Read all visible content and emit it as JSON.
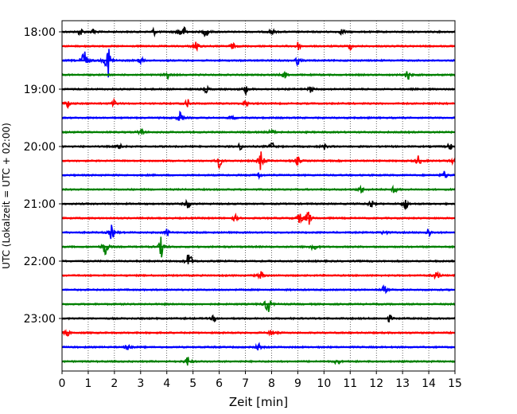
{
  "chart_data": {
    "type": "line",
    "title": "",
    "xlabel": "Zeit  [min]",
    "ylabel": "UTC (Lokalzeit = UTC + 02:00)",
    "xlim": [
      0,
      15
    ],
    "x_ticks": [
      "0",
      "1",
      "2",
      "3",
      "4",
      "5",
      "6",
      "7",
      "8",
      "9",
      "10",
      "11",
      "12",
      "13",
      "14",
      "15"
    ],
    "y_ticks": [
      "18:00",
      "19:00",
      "20:00",
      "21:00",
      "22:00",
      "23:00"
    ],
    "grid": "vertical dotted",
    "trace_interval_min": 15,
    "colors": [
      "#000000",
      "#ff0000",
      "#0000ff",
      "#008000"
    ],
    "traces": [
      {
        "start": "18:00",
        "color": "#000000",
        "events": [
          [
            0.7,
            4
          ],
          [
            1.2,
            3
          ],
          [
            3.5,
            3
          ],
          [
            4.5,
            5
          ],
          [
            4.7,
            4
          ],
          [
            5.5,
            5
          ],
          [
            8,
            3
          ],
          [
            10.7,
            3
          ]
        ]
      },
      {
        "start": "18:15",
        "color": "#ff0000",
        "events": [
          [
            5.1,
            6
          ],
          [
            6.5,
            3
          ],
          [
            9,
            4
          ],
          [
            11,
            3
          ]
        ]
      },
      {
        "start": "18:30",
        "color": "#0000ff",
        "events": [
          [
            0.85,
            14
          ],
          [
            1.75,
            18
          ],
          [
            3,
            3
          ],
          [
            9,
            4
          ]
        ]
      },
      {
        "start": "18:45",
        "color": "#008000",
        "events": [
          [
            4,
            4
          ],
          [
            8.5,
            3
          ],
          [
            13.2,
            5
          ]
        ]
      },
      {
        "start": "19:00",
        "color": "#000000",
        "events": [
          [
            5.5,
            3
          ],
          [
            7,
            4
          ],
          [
            9.5,
            3
          ]
        ]
      },
      {
        "start": "19:15",
        "color": "#ff0000",
        "events": [
          [
            0.2,
            4
          ],
          [
            2,
            3
          ],
          [
            4.8,
            4
          ],
          [
            7,
            3
          ]
        ]
      },
      {
        "start": "19:30",
        "color": "#0000ff",
        "events": [
          [
            4.5,
            5
          ],
          [
            6.5,
            3
          ]
        ]
      },
      {
        "start": "19:45",
        "color": "#008000",
        "events": [
          [
            3,
            4
          ],
          [
            8,
            3
          ]
        ]
      },
      {
        "start": "20:00",
        "color": "#000000",
        "events": [
          [
            2.2,
            3
          ],
          [
            6.8,
            3
          ],
          [
            8,
            4
          ],
          [
            10,
            3
          ],
          [
            14.8,
            3
          ]
        ]
      },
      {
        "start": "20:15",
        "color": "#ff0000",
        "events": [
          [
            6,
            6
          ],
          [
            7.6,
            10
          ],
          [
            9,
            4
          ],
          [
            13.6,
            5
          ],
          [
            14.9,
            3
          ]
        ]
      },
      {
        "start": "20:30",
        "color": "#0000ff",
        "events": [
          [
            7.5,
            3
          ],
          [
            14.6,
            4
          ]
        ]
      },
      {
        "start": "20:45",
        "color": "#008000",
        "events": [
          [
            11.4,
            3
          ],
          [
            12.7,
            4
          ]
        ]
      },
      {
        "start": "21:00",
        "color": "#000000",
        "events": [
          [
            4.8,
            4
          ],
          [
            11.8,
            4
          ],
          [
            13.1,
            6
          ]
        ]
      },
      {
        "start": "21:15",
        "color": "#ff0000",
        "events": [
          [
            6.6,
            3
          ],
          [
            9.1,
            6
          ],
          [
            9.4,
            8
          ]
        ]
      },
      {
        "start": "21:30",
        "color": "#0000ff",
        "events": [
          [
            1.9,
            7
          ],
          [
            4,
            3
          ],
          [
            12.3,
            3
          ],
          [
            14,
            4
          ]
        ]
      },
      {
        "start": "21:45",
        "color": "#008000",
        "events": [
          [
            1.65,
            9
          ],
          [
            3.8,
            10
          ],
          [
            9.6,
            6
          ]
        ]
      },
      {
        "start": "22:00",
        "color": "#000000",
        "events": [
          [
            4.85,
            11
          ]
        ]
      },
      {
        "start": "22:15",
        "color": "#ff0000",
        "events": [
          [
            7.6,
            4
          ],
          [
            14.3,
            5
          ]
        ]
      },
      {
        "start": "22:30",
        "color": "#0000ff",
        "events": [
          [
            12.3,
            4
          ]
        ]
      },
      {
        "start": "22:45",
        "color": "#008000",
        "events": [
          [
            7.85,
            10
          ]
        ]
      },
      {
        "start": "23:00",
        "color": "#000000",
        "events": [
          [
            5.8,
            3
          ],
          [
            12.5,
            3
          ]
        ]
      },
      {
        "start": "23:15",
        "color": "#ff0000",
        "events": [
          [
            0.2,
            3
          ],
          [
            8,
            3
          ]
        ]
      },
      {
        "start": "23:30",
        "color": "#0000ff",
        "events": [
          [
            2.5,
            3
          ],
          [
            7.5,
            3
          ]
        ]
      },
      {
        "start": "23:45",
        "color": "#008000",
        "events": [
          [
            4.8,
            5
          ],
          [
            10.5,
            3
          ]
        ]
      }
    ]
  }
}
